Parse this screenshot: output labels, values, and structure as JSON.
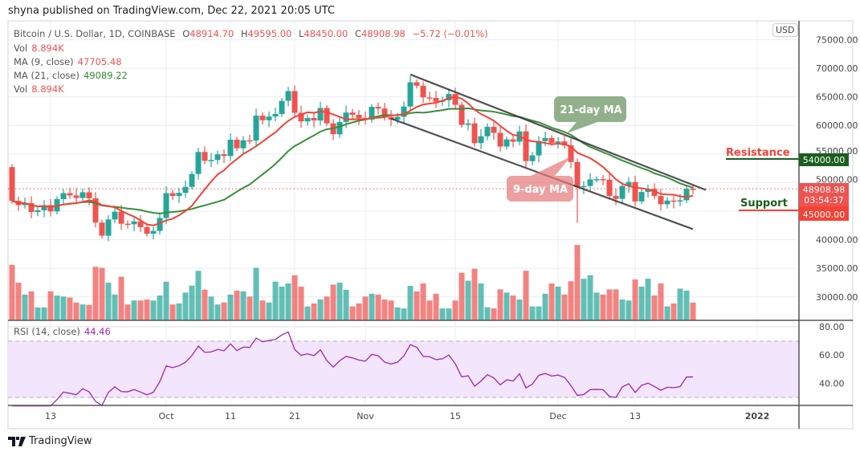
{
  "publish_line": "shyna published on TradingView.com, Dec 22, 2021 20:05 UTC",
  "header": {
    "symbol": "Bitcoin / U.S. Dollar, 1D, COINBASE",
    "o_label": "O",
    "o": "48914.70",
    "h_label": "H",
    "h": "49595.00",
    "l_label": "L",
    "l": "48450.00",
    "c_label": "C",
    "c": "48908.98",
    "change": "−5.72 (−0.01%)"
  },
  "legends": {
    "vol1_label": "Vol",
    "vol1": "8.894K",
    "ma9_label": "MA (9, close)",
    "ma9": "47705.48",
    "ma21_label": "MA (21, close)",
    "ma21": "49089.22",
    "vol2_label": "Vol",
    "vol2": "8.894K",
    "rsi_label": "RSI (14, close)",
    "rsi": "44.46"
  },
  "currency": "USD",
  "price_scale": [
    "75000.00",
    "70000.00",
    "65000.00",
    "60000.00",
    "55000.00",
    "50000.00",
    "40000.00",
    "35000.00",
    "30000.00"
  ],
  "rsi_scale": [
    "80.00",
    "60.00",
    "40.00"
  ],
  "tags": {
    "resistance_price": "54000.00",
    "last_price": "48908.98",
    "countdown": "03:54:37",
    "support_price": "45000.00"
  },
  "annotations": {
    "resistance": "Resistance",
    "support": "Support",
    "ma21_callout": "21-day MA",
    "ma9_callout": "9-day MA"
  },
  "brand": "TradingView",
  "colors": {
    "up": "#26a69a",
    "down": "#ef5350",
    "ma9": "#f44336",
    "ma21": "#388e3c",
    "rsi": "#9c27b0",
    "resistance_tag": "#1b5e20",
    "support_tag": "#f44336"
  },
  "chart_data": {
    "type": "candlestick",
    "title": "Bitcoin / U.S. Dollar, 1D, COINBASE",
    "start_date": "2021-09-07",
    "first_open": 52700,
    "close": [
      46800,
      46050,
      46400,
      44850,
      45150,
      46050,
      44950,
      47100,
      48150,
      47750,
      47300,
      48300,
      47250,
      43000,
      40700,
      43550,
      44900,
      42800,
      42700,
      43200,
      42200,
      41050,
      41550,
      43800,
      48150,
      47650,
      48200,
      49250,
      51500,
      55350,
      53800,
      53950,
      54950,
      54650,
      57500,
      56000,
      57400,
      57350,
      61700,
      60900,
      61550,
      62000,
      64300,
      66000,
      62200,
      60700,
      61300,
      60850,
      63050,
      60350,
      58450,
      60600,
      62250,
      61850,
      61300,
      61000,
      63250,
      62950,
      61450,
      61000,
      61500,
      63300,
      67550,
      66950,
      64900,
      64800,
      64150,
      64400,
      65500,
      63600,
      60100,
      60350,
      56900,
      58100,
      59750,
      58700,
      56300,
      57550,
      57150,
      58950,
      53750,
      54750,
      57250,
      57800,
      56950,
      57200,
      56500,
      53600,
      49200,
      49400,
      50550,
      50600,
      50500,
      47650,
      47150,
      49400,
      50100,
      46700,
      48350,
      48900,
      47650,
      46200,
      46850,
      46700,
      46900,
      48914.7,
      48908.98
    ],
    "volume_k": [
      28,
      19,
      13,
      14.6,
      6.5,
      6.5,
      14.6,
      12.5,
      12,
      11.5,
      9,
      8,
      7.8,
      27,
      26.5,
      19,
      13,
      22,
      8,
      10,
      10,
      10.5,
      10,
      12.5,
      19.5,
      8,
      8.5,
      14,
      17.5,
      25,
      15.5,
      12,
      8,
      9,
      13,
      15,
      14.6,
      12,
      26.5,
      10,
      9,
      19.5,
      17,
      18.6,
      22.7,
      17,
      7,
      8.5,
      10.5,
      12,
      18,
      19,
      15.4,
      7,
      8.5,
      12,
      13.4,
      13,
      10.5,
      10,
      6.5,
      6,
      17.4,
      14.6,
      18.6,
      10,
      13.4,
      6,
      6,
      10,
      24,
      20,
      26,
      18.6,
      6.6,
      6,
      15.6,
      14,
      12.5,
      10.5,
      25,
      7,
      7,
      13.4,
      18.6,
      17,
      13,
      19.7,
      38,
      21,
      22.7,
      14,
      13,
      15.6,
      15.6,
      10.5,
      10,
      20.6,
      17,
      21,
      12.5,
      18.6,
      7,
      8.5,
      16,
      15,
      8.894
    ],
    "ma_periods": [
      9,
      21
    ],
    "rsi_period": 14,
    "rsi_band": [
      30,
      70
    ],
    "price_range": [
      27000,
      77000
    ],
    "rsi_range": [
      22,
      84
    ],
    "x_ticks": [
      {
        "label": "13",
        "day": 6
      },
      {
        "label": "Oct",
        "day": 24
      },
      {
        "label": "11",
        "day": 34
      },
      {
        "label": "21",
        "day": 44
      },
      {
        "label": "Nov",
        "day": 55
      },
      {
        "label": "15",
        "day": 69
      },
      {
        "label": "Dec",
        "day": 85
      },
      {
        "label": "13",
        "day": 97
      },
      {
        "label": "2022",
        "day": 116
      }
    ],
    "trendlines": [
      {
        "name": "upper",
        "from": [
          62,
          68900
        ],
        "to": [
          108,
          48700
        ]
      },
      {
        "name": "lower",
        "from": [
          59,
          61200
        ],
        "to": [
          106,
          41850
        ]
      }
    ],
    "resistance": 54000,
    "support": 45000,
    "last_price": 48908.98
  }
}
